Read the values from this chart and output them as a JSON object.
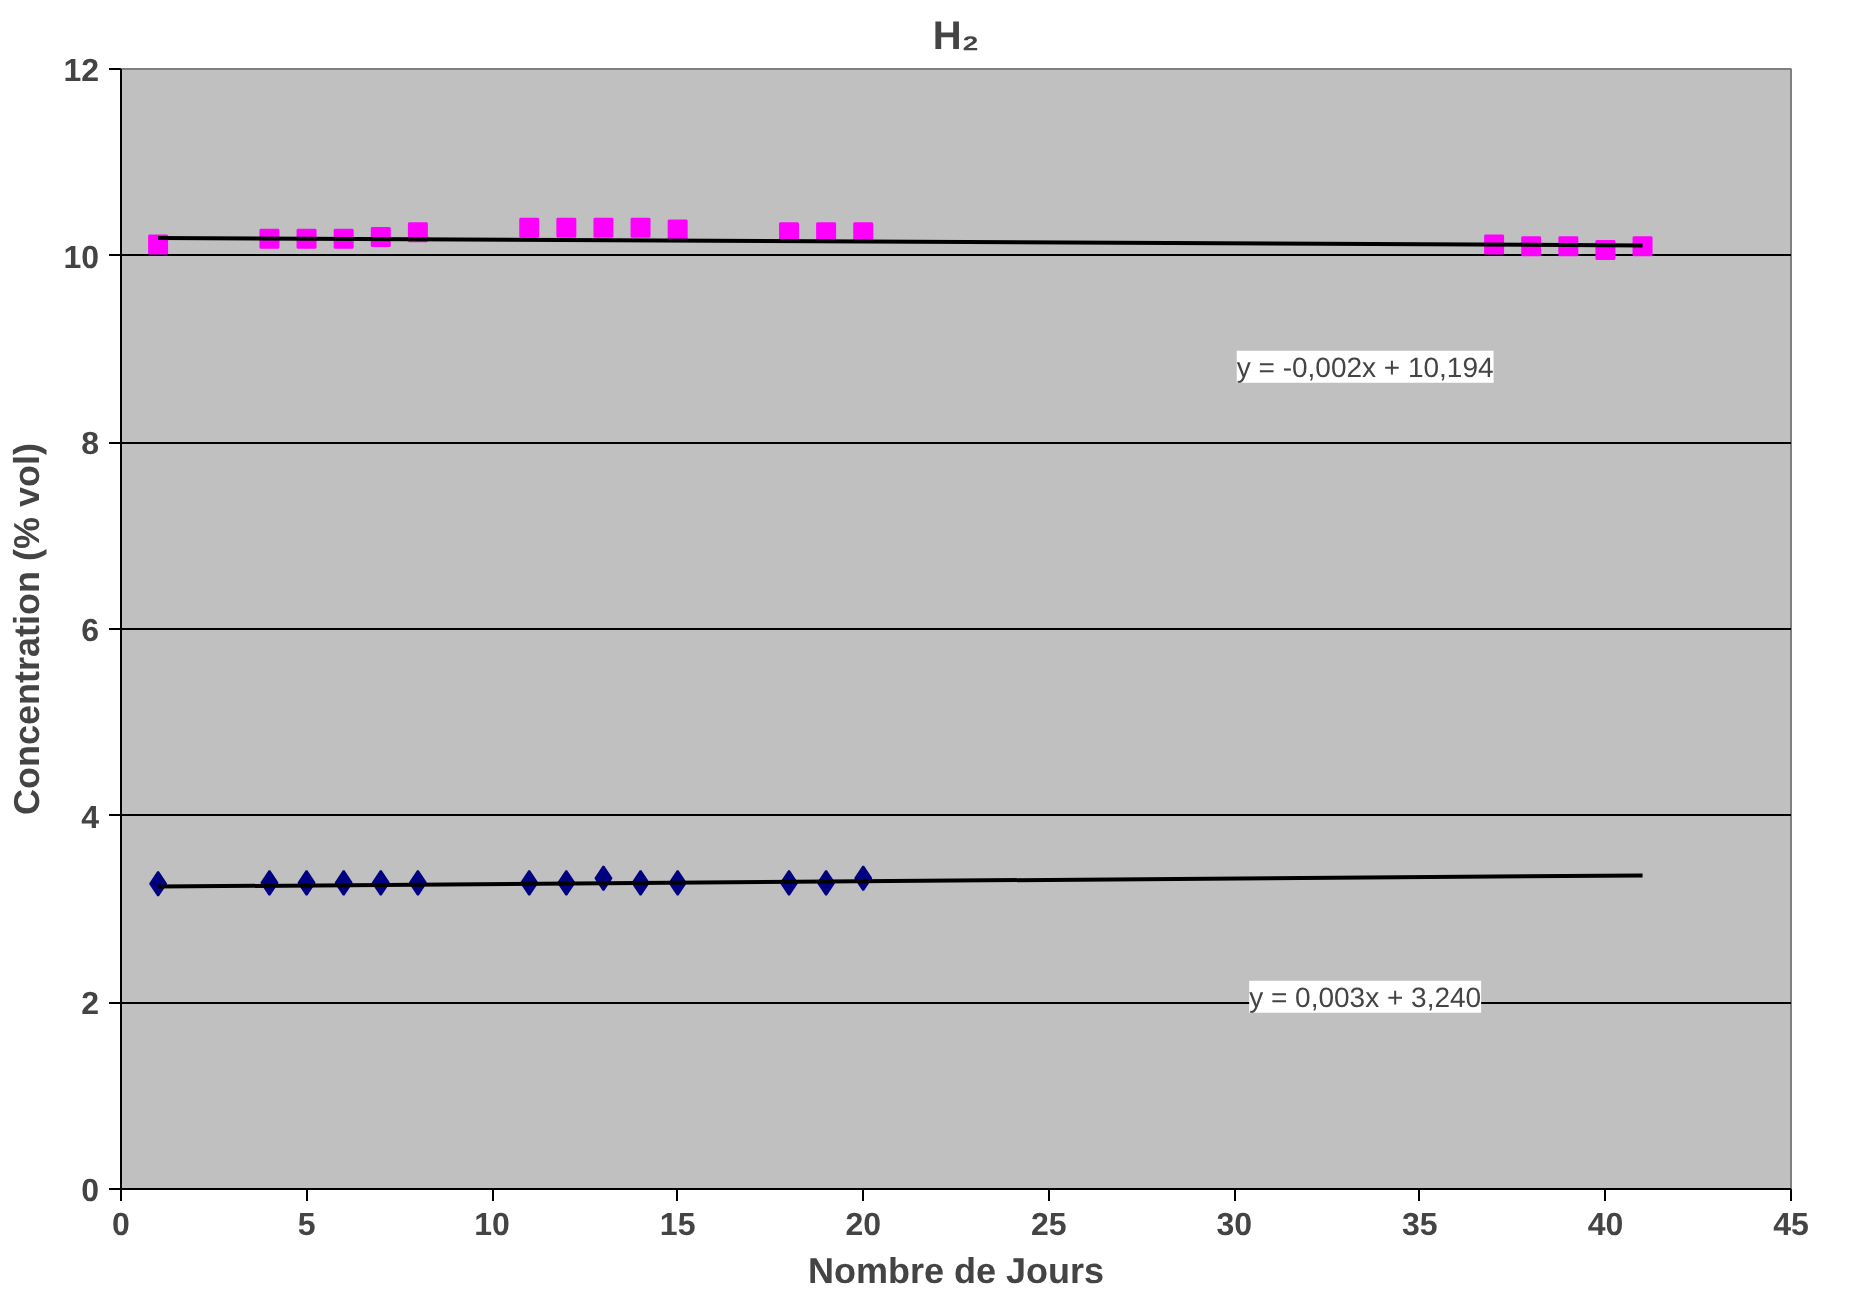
{
  "chart_data": {
    "type": "scatter",
    "title": "H₂",
    "xlabel": "Nombre de Jours",
    "ylabel": "Concentration (% vol)",
    "xlim": [
      0,
      45
    ],
    "xticks": [
      0,
      5,
      10,
      15,
      20,
      25,
      30,
      35,
      40,
      45
    ],
    "ylim": [
      0,
      12
    ],
    "yticks": [
      0,
      2,
      4,
      6,
      8,
      10,
      12
    ],
    "grid": "y",
    "series": [
      {
        "marker": "square",
        "color": "#ff00ff",
        "x": [
          1,
          4,
          5,
          6,
          7,
          8,
          11,
          12,
          13,
          14,
          15,
          18,
          19,
          20,
          37,
          38,
          39,
          40,
          41
        ],
        "values": [
          10.12,
          10.18,
          10.18,
          10.18,
          10.2,
          10.25,
          10.3,
          10.3,
          10.3,
          10.3,
          10.28,
          10.25,
          10.25,
          10.25,
          10.12,
          10.1,
          10.1,
          10.06,
          10.1
        ]
      },
      {
        "marker": "diamond",
        "color": "#000080",
        "x": [
          1,
          4,
          5,
          6,
          7,
          8,
          11,
          12,
          13,
          14,
          15,
          18,
          19,
          20
        ],
        "values": [
          3.27,
          3.28,
          3.28,
          3.28,
          3.28,
          3.28,
          3.28,
          3.28,
          3.33,
          3.28,
          3.28,
          3.28,
          3.28,
          3.33
        ]
      },
      {
        "type": "line",
        "color": "#000000",
        "x": [
          1,
          41
        ],
        "values": [
          10.19,
          10.11
        ]
      },
      {
        "type": "line",
        "color": "#000000",
        "x": [
          1,
          41
        ],
        "values": [
          3.24,
          3.36
        ]
      }
    ],
    "annotations": [
      "y = -0,002x + 10,194",
      "y = 0,003x + 3,240"
    ]
  }
}
